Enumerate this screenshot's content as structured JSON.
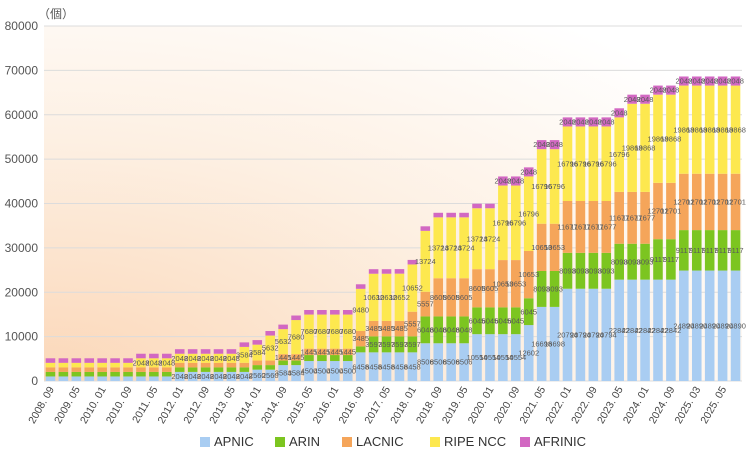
{
  "chart_data": {
    "type": "bar",
    "stacked": true,
    "unit_label": "（個）",
    "ylim": [
      0,
      80000
    ],
    "yticks": [
      0,
      10000,
      20000,
      30000,
      40000,
      50000,
      60000,
      70000,
      80000
    ],
    "grid": true,
    "legend_position": "bottom",
    "categories": [
      "2008. 09",
      "2009. 01",
      "2009. 05",
      "2009. 09",
      "2010. 01",
      "2010. 05",
      "2010. 09",
      "2011. 01",
      "2011. 05",
      "2011. 09",
      "2012. 01",
      "2012. 05",
      "2012. 09",
      "2013. 01",
      "2013. 05",
      "2013. 09",
      "2014. 01",
      "2014. 05",
      "2014. 09",
      "2015. 01",
      "2015. 05",
      "2015. 09",
      "2016. 01",
      "2016. 05",
      "2016. 09",
      "2017. 01",
      "2017. 05",
      "2017. 09",
      "2018. 01",
      "2018. 05",
      "2018. 09",
      "2019. 01",
      "2019. 05",
      "2019. 09",
      "2020. 01",
      "2020. 05",
      "2020. 09",
      "2021. 01",
      "2021. 05",
      "2021. 09",
      "2022. 01",
      "2022. 05",
      "2022. 09",
      "2023. 01",
      "2023. 05",
      "2023. 09",
      "2024. 01",
      "2024. 05",
      "2024. 09",
      "2025. 01",
      "2025. 03",
      "2025. 04",
      "2025. 05",
      "2025. 06"
    ],
    "tick_label_every": 2,
    "series": [
      {
        "name": "APNIC",
        "color": "#a9cdf2",
        "values": [
          1024,
          1024,
          1024,
          1024,
          1024,
          1024,
          1024,
          1024,
          1024,
          1024,
          2048,
          2048,
          2048,
          2048,
          2048,
          2048,
          2560,
          2560,
          3584,
          3584,
          4500,
          4500,
          4500,
          4500,
          6458,
          6458,
          6458,
          6458,
          6458,
          8506,
          8506,
          8506,
          8506,
          10554,
          10554,
          10554,
          10554,
          12602,
          16698,
          16698,
          20794,
          20794,
          20794,
          20794,
          22842,
          22842,
          22842,
          22842,
          22842,
          24890,
          24890,
          24890,
          24890,
          24890
        ]
      },
      {
        "name": "ARIN",
        "color": "#7cc520",
        "values": [
          1024,
          1024,
          1024,
          1024,
          1024,
          1024,
          1024,
          1024,
          1024,
          1024,
          1024,
          1024,
          1024,
          1024,
          1024,
          1024,
          1024,
          1024,
          1024,
          1024,
          1349,
          1349,
          1349,
          1349,
          1349,
          3597,
          3597,
          3597,
          3597,
          6048,
          6048,
          6048,
          6048,
          6045,
          6045,
          6045,
          6045,
          6045,
          8093,
          8093,
          8093,
          8093,
          8093,
          8093,
          8093,
          8093,
          8093,
          9117,
          9117,
          9117,
          9117,
          9117,
          9117,
          9117
        ]
      },
      {
        "name": "LACNIC",
        "color": "#f5a55a",
        "values": [
          1024,
          1024,
          1024,
          1024,
          1024,
          1024,
          1024,
          1024,
          1024,
          1024,
          1024,
          1024,
          1024,
          1024,
          1024,
          1024,
          1024,
          1024,
          1445,
          1445,
          1445,
          1445,
          1445,
          1445,
          3485,
          3485,
          3485,
          3485,
          5557,
          5557,
          8605,
          8605,
          8605,
          8605,
          8605,
          10653,
          10653,
          10653,
          10653,
          10653,
          11677,
          11677,
          11677,
          11677,
          11677,
          11677,
          11677,
          12701,
          12701,
          12701,
          12701,
          12701,
          12701,
          12701
        ]
      },
      {
        "name": "RIPE NCC",
        "color": "#fde84f",
        "values": [
          1024,
          1024,
          1024,
          1024,
          1024,
          1024,
          1024,
          2048,
          2048,
          2048,
          2048,
          2048,
          2048,
          2048,
          2048,
          3584,
          3584,
          5632,
          5632,
          7680,
          7680,
          7680,
          7680,
          7680,
          9480,
          10632,
          10632,
          10652,
          10652,
          13724,
          13724,
          13724,
          13724,
          13724,
          13724,
          16796,
          16796,
          16796,
          16796,
          16796,
          16796,
          16796,
          16796,
          16796,
          16796,
          19868,
          19868,
          19868,
          19868,
          19868,
          19868,
          19868,
          19868,
          19868
        ]
      },
      {
        "name": "AFRINIC",
        "color": "#d268c2",
        "values": [
          1024,
          1024,
          1024,
          1024,
          1024,
          1024,
          1024,
          1024,
          1024,
          1024,
          1024,
          1024,
          1024,
          1024,
          1024,
          1024,
          1024,
          1024,
          1024,
          1024,
          1024,
          1024,
          1024,
          1024,
          1024,
          1024,
          1024,
          1024,
          1024,
          1024,
          1024,
          1024,
          1024,
          1024,
          1024,
          2048,
          2048,
          2048,
          2048,
          2048,
          2048,
          2048,
          2048,
          2048,
          2048,
          2048,
          2048,
          2048,
          2048,
          2048,
          2048,
          2048,
          2048,
          2048
        ]
      }
    ]
  }
}
